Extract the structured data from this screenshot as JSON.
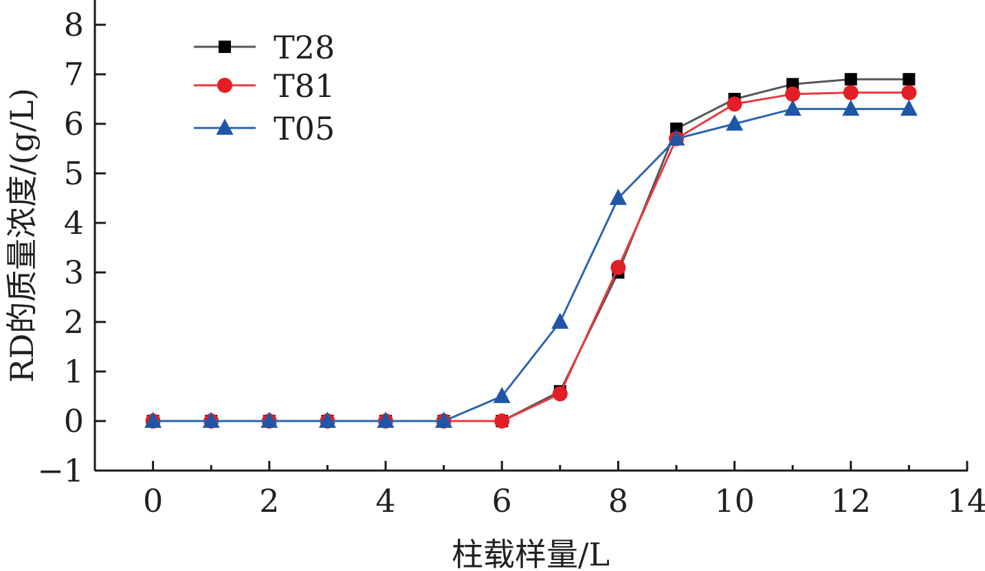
{
  "chart_data": {
    "type": "line",
    "xlabel": "柱载样量/L",
    "ylabel": "RD的质量浓度/(g/L)",
    "xlim": [
      -1,
      14
    ],
    "ylim": [
      -1,
      8.4
    ],
    "x_ticks": [
      0,
      2,
      4,
      6,
      8,
      10,
      12,
      14
    ],
    "x_minor_ticks": [
      1,
      3,
      5,
      7,
      9,
      11,
      13
    ],
    "y_ticks": [
      -1,
      0,
      1,
      2,
      3,
      4,
      5,
      6,
      7,
      8
    ],
    "x_tick_labels": [
      "0",
      "2",
      "4",
      "6",
      "8",
      "10",
      "12",
      "14"
    ],
    "y_tick_labels": [
      "−1",
      "0",
      "1",
      "2",
      "3",
      "4",
      "5",
      "6",
      "7",
      "8"
    ],
    "grid": false,
    "legend_position": "top-left",
    "x": [
      0,
      1,
      2,
      3,
      4,
      5,
      6,
      7,
      8,
      9,
      10,
      11,
      12,
      13
    ],
    "series": [
      {
        "name": "T28",
        "color": "#555555",
        "marker_color": "#000000",
        "marker": "square",
        "values": [
          0,
          0,
          0,
          0,
          0,
          0,
          0,
          0.6,
          3.0,
          5.9,
          6.5,
          6.8,
          6.9,
          6.9
        ]
      },
      {
        "name": "T81",
        "color": "#e8383d",
        "marker_color": "#e21f26",
        "marker": "circle",
        "values": [
          0,
          0,
          0,
          0,
          0,
          0,
          0,
          0.55,
          3.1,
          5.7,
          6.4,
          6.6,
          6.63,
          6.63
        ]
      },
      {
        "name": "T05",
        "color": "#2a64ad",
        "marker_color": "#1f56a6",
        "marker": "triangle",
        "values": [
          0,
          0,
          0,
          0,
          0,
          0,
          0.5,
          2.0,
          4.5,
          5.7,
          6.0,
          6.3,
          6.3,
          6.3
        ]
      }
    ]
  }
}
